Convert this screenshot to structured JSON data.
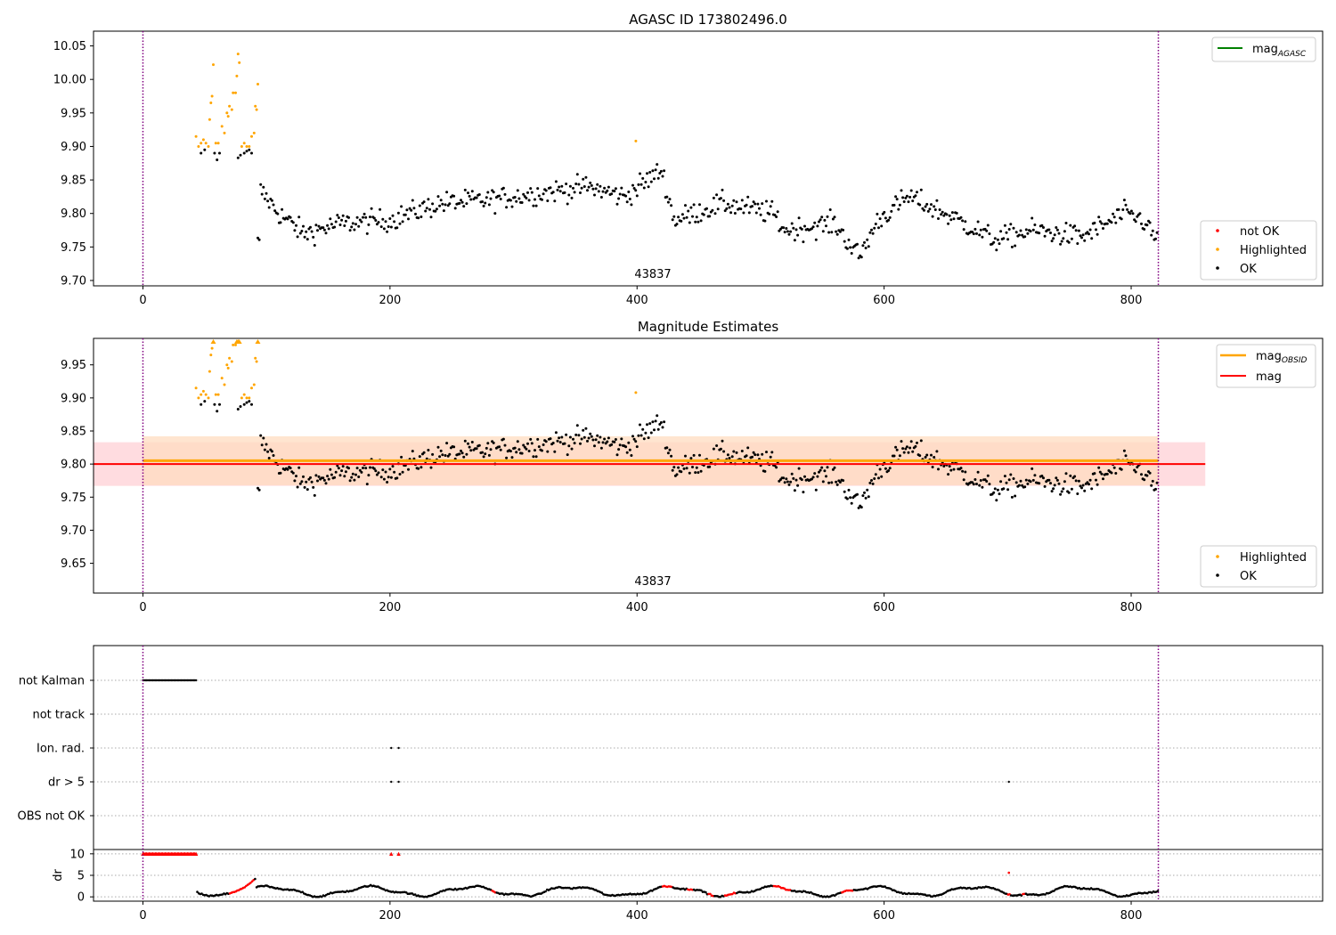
{
  "figure": {
    "title": "AGASC ID 173802496.0"
  },
  "colors": {
    "ok": "#000000",
    "highlighted": "#ffa500",
    "not_ok": "#ff0000",
    "mag_agasc": "#008000",
    "mag_obsid": "#ffa500",
    "mag": "#ff0000",
    "obs_line": "#800080",
    "band_obsid": "#ffdcc0",
    "band_mag": "#ffd0d5"
  },
  "chart_data": [
    {
      "id": "top",
      "type": "scatter",
      "title": "",
      "xlabel": "",
      "ylabel": "",
      "xlim": [
        -40,
        955
      ],
      "ylim": [
        9.692,
        10.072
      ],
      "xticks": [
        "0",
        "200",
        "400",
        "600",
        "800"
      ],
      "yticks": [
        "9.70",
        "9.75",
        "9.80",
        "9.85",
        "9.90",
        "9.95",
        "10.00",
        "10.05"
      ],
      "obsid_label": "43837",
      "vlines_x": [
        0,
        822
      ],
      "series": [
        {
          "name": "not OK",
          "values": []
        },
        {
          "name": "Highlighted",
          "x_range": [
            42,
            92
          ]
        },
        {
          "name": "OK",
          "x_range": [
            44,
            822
          ]
        }
      ],
      "legend": {
        "lines": [
          {
            "label_main": "mag",
            "label_sub": "AGASC"
          }
        ],
        "markers": [
          "not OK",
          "Highlighted",
          "OK"
        ],
        "line_position": "top-right",
        "marker_position": "lower-right"
      }
    },
    {
      "id": "middle",
      "type": "scatter",
      "title": "Magnitude Estimates",
      "xlabel": "",
      "ylabel": "",
      "xlim": [
        -40,
        955
      ],
      "ylim": [
        9.605,
        9.99
      ],
      "xticks": [
        "0",
        "200",
        "400",
        "600",
        "800"
      ],
      "yticks": [
        "9.65",
        "9.70",
        "9.75",
        "9.80",
        "9.85",
        "9.90",
        "9.95"
      ],
      "obsid_label": "43837",
      "vlines_x": [
        0,
        822
      ],
      "mag_obsid": {
        "value": 9.805,
        "band": [
          9.768,
          9.842
        ],
        "x_range": [
          0,
          822
        ]
      },
      "mag": {
        "value": 9.8,
        "band": [
          9.767,
          9.833
        ],
        "x_range": [
          -40,
          860
        ]
      },
      "series": [
        {
          "name": "Highlighted",
          "x_range": [
            42,
            92
          ]
        },
        {
          "name": "OK",
          "x_range": [
            44,
            822
          ]
        }
      ],
      "legend": {
        "lines": [
          {
            "label_main": "mag",
            "label_sub": "OBSID"
          },
          {
            "label_main": "mag",
            "label_sub": ""
          }
        ],
        "markers": [
          "Highlighted",
          "OK"
        ],
        "line_position": "top-right",
        "marker_position": "lower-right"
      }
    },
    {
      "id": "flags",
      "type": "scatter",
      "xlim": [
        -40,
        955
      ],
      "categories": [
        "not Kalman",
        "not track",
        "Ion. rad.",
        "dr > 5",
        "OBS not OK"
      ],
      "vlines_x": [
        0,
        822
      ],
      "flag_points": [
        {
          "category": "not Kalman",
          "x_range": [
            0,
            43
          ]
        },
        {
          "category": "Ion. rad.",
          "x": [
            201,
            207
          ]
        },
        {
          "category": "dr > 5",
          "x": [
            201,
            207,
            701
          ]
        }
      ]
    },
    {
      "id": "dr",
      "type": "scatter",
      "ylabel": "dr",
      "xlim": [
        -40,
        955
      ],
      "ylim": [
        -1,
        11
      ],
      "yticks": [
        "0",
        "5",
        "10"
      ],
      "xticks": [
        "0",
        "200",
        "400",
        "600",
        "800"
      ],
      "clipped_value": 10,
      "vlines_x": [
        0,
        822
      ]
    }
  ]
}
